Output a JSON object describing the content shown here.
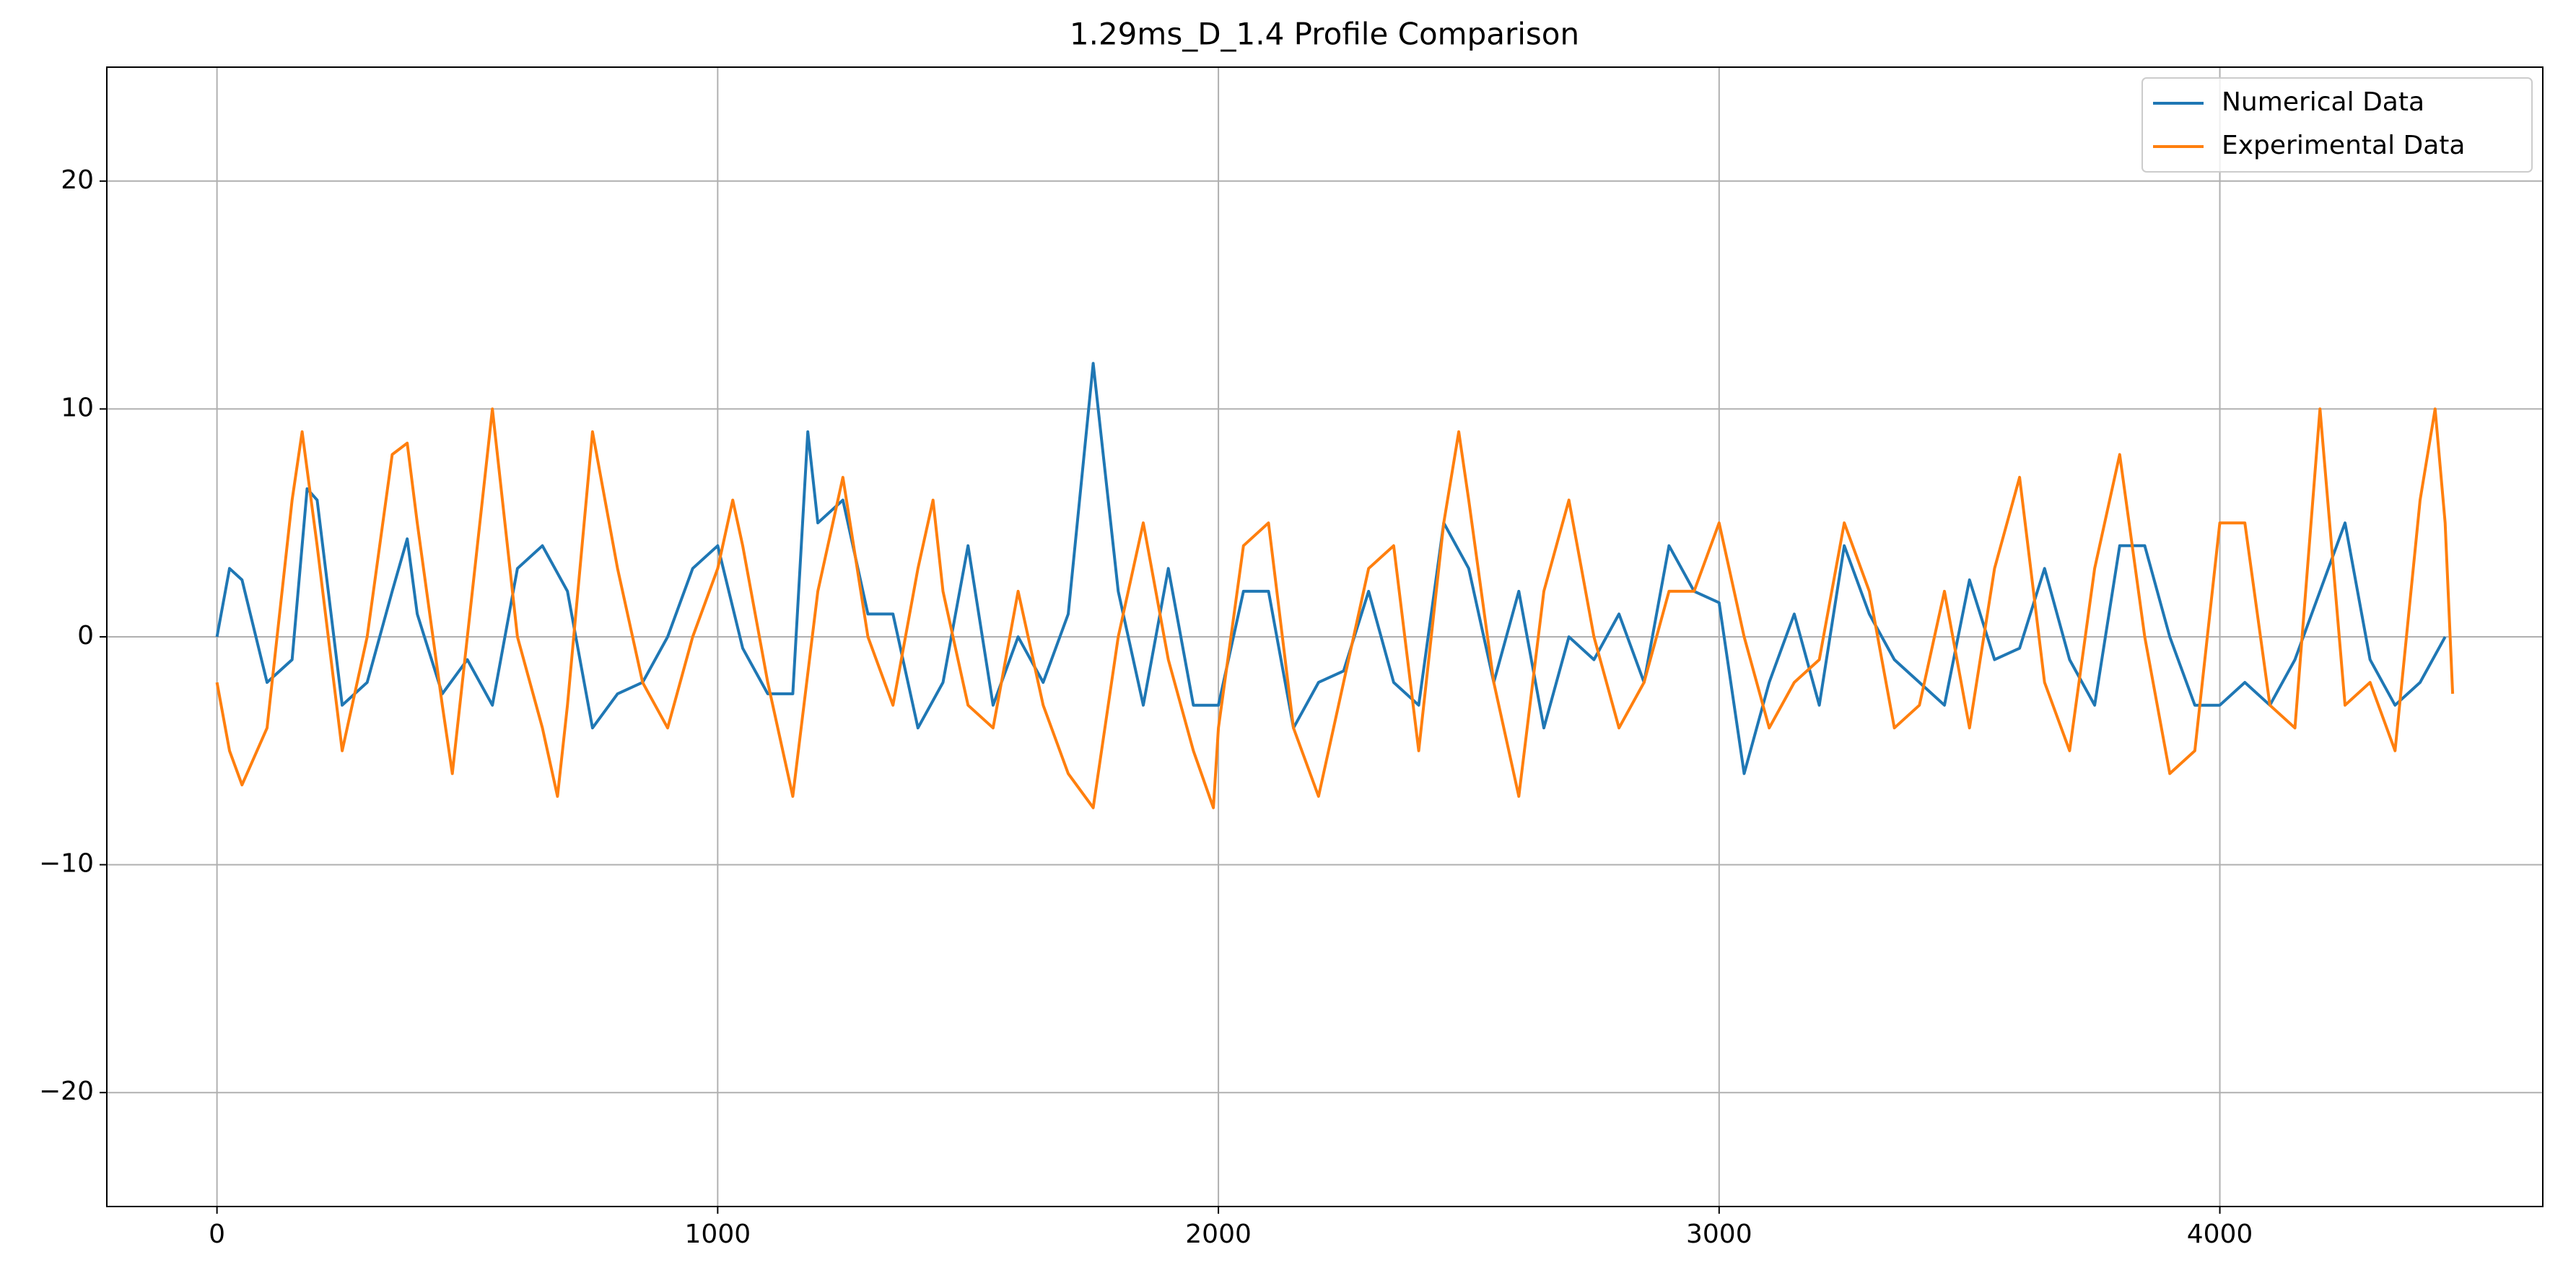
{
  "chart_data": {
    "type": "line",
    "title": "1.29ms_D_1.4 Profile Comparison",
    "xlim": [
      -220,
      4645
    ],
    "ylim": [
      -25,
      25
    ],
    "xticks": [
      0,
      1000,
      2000,
      3000,
      4000
    ],
    "yticks": [
      {
        "value": -20,
        "label": "−20"
      },
      {
        "value": -10,
        "label": "−10"
      },
      0,
      10,
      20
    ],
    "grid": true,
    "legend": "upper right",
    "series": [
      {
        "name": "Numerical Data",
        "color": "#1f77b4",
        "x": [
          0,
          25,
          50,
          100,
          150,
          180,
          200,
          250,
          300,
          350,
          380,
          400,
          450,
          500,
          550,
          600,
          650,
          700,
          750,
          800,
          850,
          900,
          950,
          1000,
          1050,
          1100,
          1150,
          1180,
          1200,
          1250,
          1300,
          1350,
          1400,
          1450,
          1500,
          1550,
          1600,
          1650,
          1700,
          1750,
          1800,
          1850,
          1900,
          1950,
          2000,
          2050,
          2100,
          2150,
          2200,
          2250,
          2300,
          2350,
          2400,
          2450,
          2500,
          2550,
          2600,
          2650,
          2700,
          2750,
          2800,
          2850,
          2900,
          2950,
          3000,
          3050,
          3100,
          3150,
          3200,
          3250,
          3300,
          3350,
          3400,
          3450,
          3500,
          3550,
          3600,
          3650,
          3700,
          3750,
          3800,
          3850,
          3900,
          3950,
          4000,
          4050,
          4100,
          4150,
          4200,
          4250,
          4300,
          4350,
          4400,
          4450
        ],
        "values": [
          0,
          3,
          2.5,
          -2,
          -1,
          6.5,
          6,
          -3,
          -2,
          2,
          4.3,
          1,
          -2.5,
          -1,
          -3,
          3,
          4,
          2,
          -4,
          -2.5,
          -2,
          0,
          3,
          4,
          -0.5,
          -2.5,
          -2.5,
          9,
          5,
          6,
          1,
          1,
          -4,
          -2,
          4,
          -3,
          0,
          -2,
          1,
          12,
          2,
          -3,
          3,
          -3,
          -3,
          2,
          2,
          -4,
          -2,
          -1.5,
          2,
          -2,
          -3,
          5,
          3,
          -2,
          2,
          -4,
          0,
          -1,
          1,
          -2,
          4,
          2,
          1.5,
          -6,
          -2,
          1,
          -3,
          4,
          1,
          -1,
          -2,
          -3,
          2.5,
          -1,
          -0.5,
          3,
          -1,
          -3,
          4,
          4,
          0,
          -3,
          -3,
          -2,
          -3,
          -1,
          2,
          5,
          -1,
          -3,
          -2,
          0
        ]
      },
      {
        "name": "Experimental Data",
        "color": "#ff7f0e",
        "x": [
          0,
          25,
          50,
          100,
          150,
          170,
          200,
          250,
          300,
          350,
          380,
          400,
          450,
          470,
          500,
          550,
          600,
          650,
          680,
          700,
          750,
          800,
          850,
          900,
          950,
          1000,
          1030,
          1050,
          1100,
          1150,
          1200,
          1250,
          1300,
          1350,
          1400,
          1430,
          1450,
          1500,
          1550,
          1600,
          1650,
          1700,
          1750,
          1800,
          1850,
          1900,
          1950,
          1990,
          2000,
          2050,
          2100,
          2150,
          2200,
          2250,
          2300,
          2350,
          2400,
          2450,
          2480,
          2500,
          2550,
          2600,
          2650,
          2700,
          2750,
          2800,
          2850,
          2900,
          2950,
          3000,
          3050,
          3100,
          3150,
          3200,
          3250,
          3300,
          3350,
          3400,
          3450,
          3500,
          3550,
          3600,
          3650,
          3700,
          3750,
          3800,
          3850,
          3900,
          3950,
          4000,
          4050,
          4100,
          4150,
          4200,
          4250,
          4300,
          4350,
          4400,
          4430,
          4450,
          4465
        ],
        "values": [
          -2,
          -5,
          -6.5,
          -4,
          6,
          9,
          4,
          -5,
          0,
          8,
          8.5,
          5,
          -3,
          -6,
          0,
          10,
          0,
          -4,
          -7,
          -3,
          9,
          3,
          -2,
          -4,
          0,
          3,
          6,
          4,
          -2,
          -7,
          2,
          7,
          0,
          -3,
          3,
          6,
          2,
          -3,
          -4,
          2,
          -3,
          -6,
          -7.5,
          0,
          5,
          -1,
          -5,
          -7.5,
          -4,
          4,
          5,
          -4,
          -7,
          -2,
          3,
          4,
          -5,
          5,
          9,
          6,
          -2,
          -7,
          2,
          6,
          0,
          -4,
          -2,
          2,
          2,
          5,
          0,
          -4,
          -2,
          -1,
          5,
          2,
          -4,
          -3,
          2,
          -4,
          3,
          7,
          -2,
          -5,
          3,
          8,
          0,
          -6,
          -5,
          5,
          5,
          -3,
          -4,
          10,
          -3,
          -2,
          -5,
          6,
          10,
          5,
          -2.5
        ]
      }
    ]
  }
}
